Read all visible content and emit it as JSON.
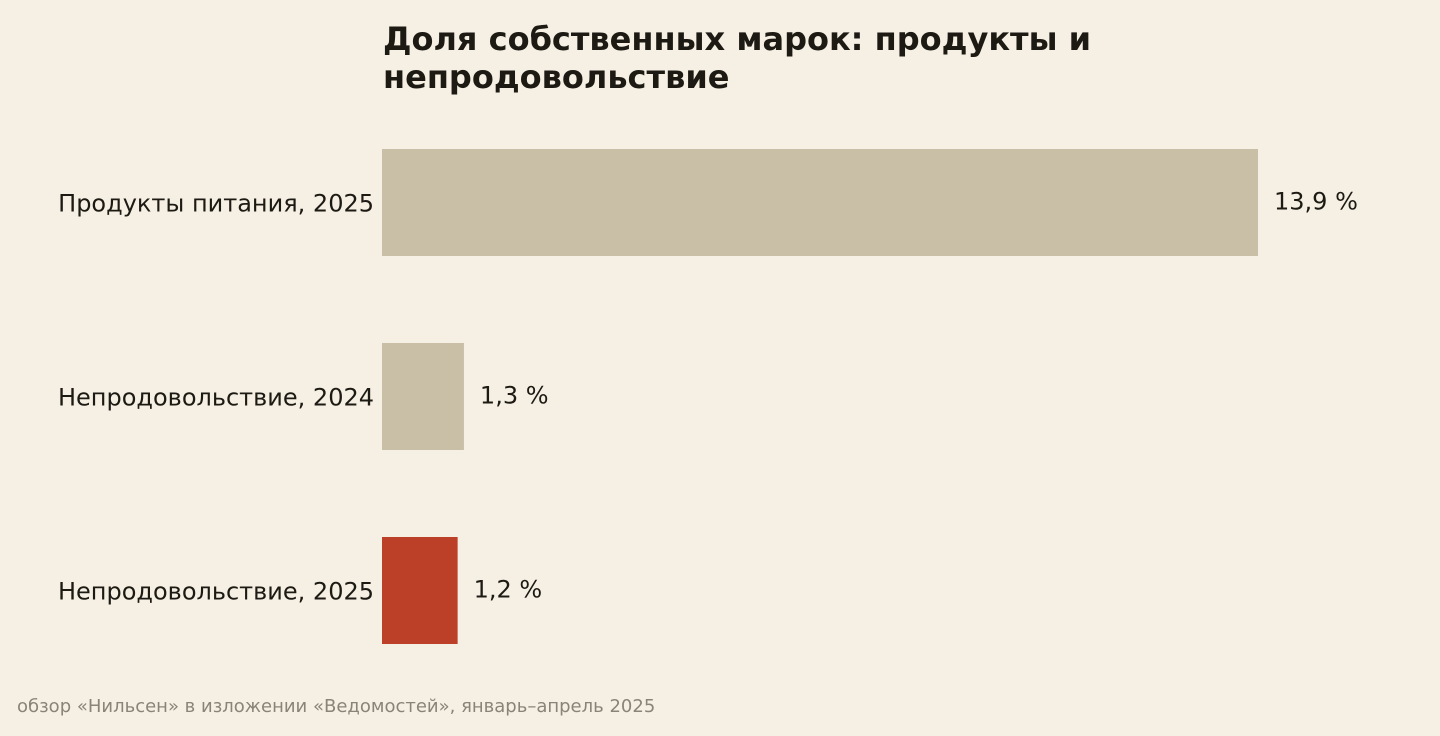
{
  "chart_data": {
    "type": "bar",
    "orientation": "horizontal",
    "title": "Доля собственных марок: продукты и непродовольствие",
    "categories": [
      "Продукты питания, 2025",
      "Непродовольствие, 2024",
      "Непродовольствие, 2025"
    ],
    "values": [
      13.9,
      1.3,
      1.2
    ],
    "value_labels": [
      "13,9 %",
      "1,3 %",
      "1,2 %"
    ],
    "unit": "%",
    "xlim": [
      0,
      13.9
    ],
    "grid": false,
    "legend": "none",
    "colors": [
      "#c9bfa7",
      "#c9bfa7",
      "#bc3f28"
    ]
  },
  "source_note": "обзор «Нильсен» в изложении «Ведомостей», январь–апрель 2025"
}
